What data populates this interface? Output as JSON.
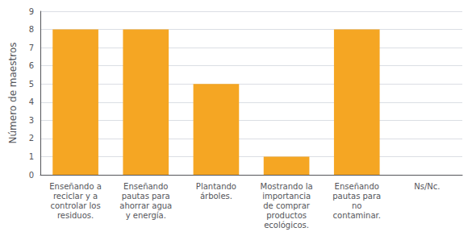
{
  "chart_data": {
    "type": "bar",
    "categories": [
      "Enseñando a\nreciclar y a\ncontrolar los\nresiduos.",
      "Enseñando\npautas para\nahorrar agua\ny energía.",
      "Plantando\nárboles.",
      "Mostrando la\nimportancia\nde comprar\nproductos\necológicos.",
      "Enseñando\npautas para\nno\ncontaminar.",
      "Ns/Nc."
    ],
    "values": [
      8,
      8,
      5,
      1,
      8,
      0
    ],
    "color": "#F5A623",
    "ylabel": "Número de maestros",
    "ylim": [
      0,
      9
    ],
    "yticks": [
      0,
      1,
      2,
      3,
      4,
      5,
      6,
      7,
      8,
      9
    ],
    "grid": true
  }
}
